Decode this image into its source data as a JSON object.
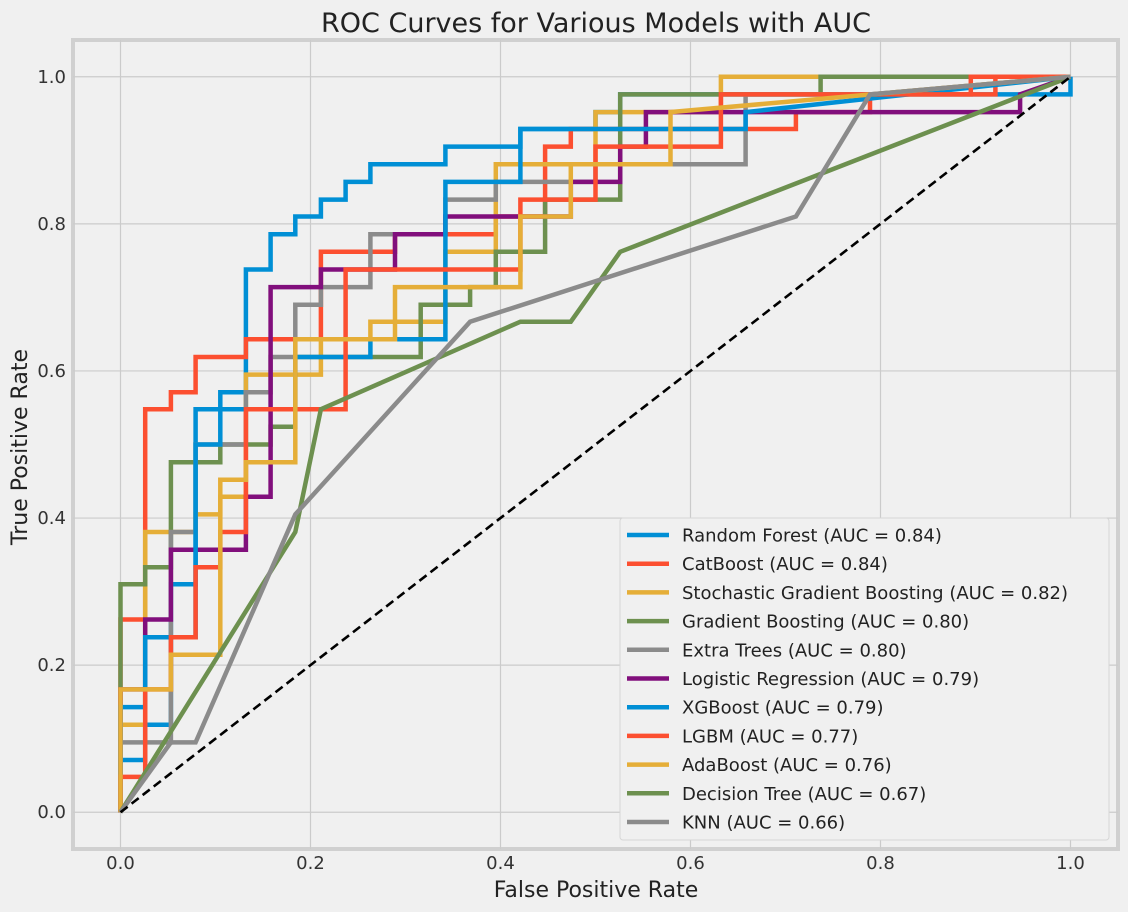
{
  "chart_data": {
    "type": "line",
    "title": "ROC Curves for Various Models with AUC",
    "xlabel": "False Positive Rate",
    "ylabel": "True Positive Rate",
    "xlim": [
      -0.05,
      1.05
    ],
    "ylim": [
      -0.05,
      1.05
    ],
    "xticks": [
      0.0,
      0.2,
      0.4,
      0.6,
      0.8,
      1.0
    ],
    "yticks": [
      0.0,
      0.2,
      0.4,
      0.6,
      0.8,
      1.0
    ],
    "xtick_labels": [
      "0.0",
      "0.2",
      "0.4",
      "0.6",
      "0.8",
      "1.0"
    ],
    "ytick_labels": [
      "0.0",
      "0.2",
      "0.4",
      "0.6",
      "0.8",
      "1.0"
    ],
    "grid": true,
    "legend_position": "lower-right",
    "background": "#f0f0f0",
    "series": [
      {
        "name": "Random Forest (AUC = 0.84)",
        "color": "#008fd5",
        "x": [
          0,
          0,
          0.026,
          0.026,
          0.053,
          0.053,
          0.079,
          0.079,
          0.105,
          0.105,
          0.132,
          0.132,
          0.158,
          0.158,
          0.184,
          0.184,
          0.211,
          0.211,
          0.237,
          0.237,
          0.263,
          0.263,
          0.342,
          0.342,
          0.421,
          0.421,
          0.5,
          0.5,
          0.526,
          0.526,
          0.553,
          0.553,
          0.579,
          0.579,
          0.605,
          0.605,
          1.0,
          1.0
        ],
        "y": [
          0,
          0.071,
          0.071,
          0.119,
          0.119,
          0.31,
          0.31,
          0.548,
          0.548,
          0.571,
          0.571,
          0.738,
          0.738,
          0.786,
          0.786,
          0.81,
          0.81,
          0.833,
          0.833,
          0.857,
          0.857,
          0.881,
          0.881,
          0.905,
          0.905,
          0.929,
          0.929,
          0.952,
          0.952,
          0.976,
          0.976,
          0.976,
          0.976,
          0.976,
          0.976,
          0.976,
          0.976,
          1.0
        ]
      },
      {
        "name": "CatBoost (AUC = 0.84)",
        "color": "#fc4f30",
        "x": [
          0,
          0,
          0.026,
          0.026,
          0.053,
          0.053,
          0.079,
          0.079,
          0.132,
          0.132,
          0.158,
          0.158,
          0.211,
          0.211,
          0.237,
          0.237,
          0.289,
          0.289,
          0.395,
          0.395,
          0.447,
          0.447,
          0.474,
          0.474,
          0.711,
          0.711,
          0.789,
          0.789,
          0.921,
          0.921,
          1.0
        ],
        "y": [
          0,
          0.262,
          0.262,
          0.548,
          0.548,
          0.571,
          0.571,
          0.619,
          0.619,
          0.643,
          0.643,
          0.643,
          0.643,
          0.762,
          0.762,
          0.762,
          0.762,
          0.786,
          0.786,
          0.81,
          0.81,
          0.905,
          0.905,
          0.929,
          0.929,
          0.952,
          0.952,
          0.976,
          0.976,
          1.0,
          1.0
        ]
      },
      {
        "name": "Stochastic Gradient Boosting (AUC = 0.82)",
        "color": "#e5ae38",
        "x": [
          0,
          0,
          0.026,
          0.026,
          0.053,
          0.053,
          0.079,
          0.079,
          0.105,
          0.105,
          0.132,
          0.132,
          0.158,
          0.158,
          0.211,
          0.211,
          0.263,
          0.263,
          0.342,
          0.342,
          0.395,
          0.395,
          0.5,
          0.5,
          0.632,
          0.632,
          0.868,
          0.868,
          1.0
        ],
        "y": [
          0,
          0.119,
          0.119,
          0.381,
          0.381,
          0.381,
          0.381,
          0.405,
          0.405,
          0.429,
          0.429,
          0.595,
          0.595,
          0.595,
          0.595,
          0.643,
          0.643,
          0.667,
          0.667,
          0.762,
          0.762,
          0.881,
          0.881,
          0.952,
          0.952,
          1.0,
          1.0,
          1.0,
          1.0
        ]
      },
      {
        "name": "Gradient Boosting (AUC = 0.80)",
        "color": "#6d904f",
        "x": [
          0,
          0,
          0.026,
          0.026,
          0.053,
          0.053,
          0.105,
          0.105,
          0.158,
          0.158,
          0.184,
          0.184,
          0.316,
          0.316,
          0.368,
          0.368,
          0.395,
          0.395,
          0.447,
          0.447,
          0.526,
          0.526,
          0.737,
          0.737,
          1.0
        ],
        "y": [
          0,
          0.31,
          0.31,
          0.333,
          0.333,
          0.476,
          0.476,
          0.5,
          0.5,
          0.524,
          0.524,
          0.619,
          0.619,
          0.69,
          0.69,
          0.714,
          0.714,
          0.762,
          0.762,
          0.833,
          0.833,
          0.976,
          0.976,
          1.0,
          1.0
        ]
      },
      {
        "name": "Extra Trees (AUC = 0.80)",
        "color": "#8b8b8b",
        "x": [
          0,
          0,
          0.053,
          0.053,
          0.079,
          0.079,
          0.132,
          0.132,
          0.158,
          0.158,
          0.184,
          0.184,
          0.211,
          0.211,
          0.263,
          0.263,
          0.342,
          0.342,
          0.395,
          0.395,
          0.5,
          0.5,
          0.658,
          0.658,
          0.789,
          1.0
        ],
        "y": [
          0,
          0.095,
          0.095,
          0.381,
          0.381,
          0.5,
          0.5,
          0.571,
          0.571,
          0.619,
          0.619,
          0.69,
          0.69,
          0.714,
          0.714,
          0.786,
          0.786,
          0.833,
          0.833,
          0.857,
          0.857,
          0.881,
          0.881,
          0.976,
          0.976,
          1.0
        ]
      },
      {
        "name": "Logistic Regression (AUC = 0.79)",
        "color": "#810f7c",
        "x": [
          0,
          0,
          0.026,
          0.026,
          0.053,
          0.053,
          0.105,
          0.105,
          0.132,
          0.132,
          0.158,
          0.158,
          0.211,
          0.211,
          0.289,
          0.289,
          0.342,
          0.342,
          0.474,
          0.474,
          0.526,
          0.526,
          0.553,
          0.553,
          0.947,
          0.947,
          1.0
        ],
        "y": [
          0,
          0.167,
          0.167,
          0.262,
          0.262,
          0.357,
          0.357,
          0.357,
          0.357,
          0.429,
          0.429,
          0.714,
          0.714,
          0.738,
          0.738,
          0.786,
          0.786,
          0.81,
          0.81,
          0.857,
          0.857,
          0.905,
          0.905,
          0.952,
          0.952,
          0.976,
          1.0
        ]
      },
      {
        "name": "XGBoost (AUC = 0.79)",
        "color": "#008fd5",
        "x": [
          0,
          0,
          0.026,
          0.026,
          0.079,
          0.079,
          0.105,
          0.105,
          0.184,
          0.184,
          0.263,
          0.263,
          0.342,
          0.342,
          0.421,
          0.421,
          0.658,
          0.658,
          1.0
        ],
        "y": [
          0,
          0.143,
          0.143,
          0.238,
          0.238,
          0.5,
          0.5,
          0.548,
          0.548,
          0.619,
          0.619,
          0.643,
          0.643,
          0.857,
          0.857,
          0.929,
          0.929,
          0.952,
          1.0
        ]
      },
      {
        "name": "LGBM (AUC = 0.77)",
        "color": "#fc4f30",
        "x": [
          0,
          0,
          0.026,
          0.026,
          0.053,
          0.053,
          0.079,
          0.079,
          0.105,
          0.105,
          0.132,
          0.132,
          0.184,
          0.184,
          0.237,
          0.237,
          0.395,
          0.395,
          0.421,
          0.421,
          0.5,
          0.5,
          0.632,
          0.632,
          0.895,
          0.895,
          1.0
        ],
        "y": [
          0,
          0.048,
          0.048,
          0.167,
          0.167,
          0.238,
          0.238,
          0.333,
          0.333,
          0.381,
          0.381,
          0.548,
          0.548,
          0.548,
          0.548,
          0.738,
          0.738,
          0.738,
          0.738,
          0.833,
          0.833,
          0.905,
          0.905,
          0.976,
          0.976,
          1.0,
          1.0
        ]
      },
      {
        "name": "AdaBoost (AUC = 0.76)",
        "color": "#e5ae38",
        "x": [
          0,
          0,
          0.053,
          0.053,
          0.105,
          0.105,
          0.132,
          0.132,
          0.184,
          0.184,
          0.289,
          0.289,
          0.421,
          0.421,
          0.474,
          0.474,
          0.579,
          0.579,
          1.0
        ],
        "y": [
          0,
          0.167,
          0.167,
          0.214,
          0.214,
          0.452,
          0.452,
          0.476,
          0.476,
          0.643,
          0.643,
          0.714,
          0.714,
          0.81,
          0.81,
          0.881,
          0.881,
          0.952,
          1.0
        ]
      },
      {
        "name": "Decision Tree (AUC = 0.67)",
        "color": "#6d904f",
        "x": [
          0,
          0.184,
          0.211,
          0.421,
          0.474,
          0.526,
          1.0
        ],
        "y": [
          0,
          0.381,
          0.548,
          0.667,
          0.667,
          0.762,
          1.0
        ]
      },
      {
        "name": "KNN (AUC = 0.66)",
        "color": "#8b8b8b",
        "x": [
          0,
          0.053,
          0.079,
          0.184,
          0.368,
          0.711,
          0.789,
          1.0
        ],
        "y": [
          0,
          0.095,
          0.095,
          0.405,
          0.667,
          0.81,
          0.976,
          1.0
        ]
      }
    ],
    "reference_line": {
      "x": [
        0,
        1
      ],
      "y": [
        0,
        1
      ],
      "color": "#000000",
      "style": "dashed"
    }
  }
}
